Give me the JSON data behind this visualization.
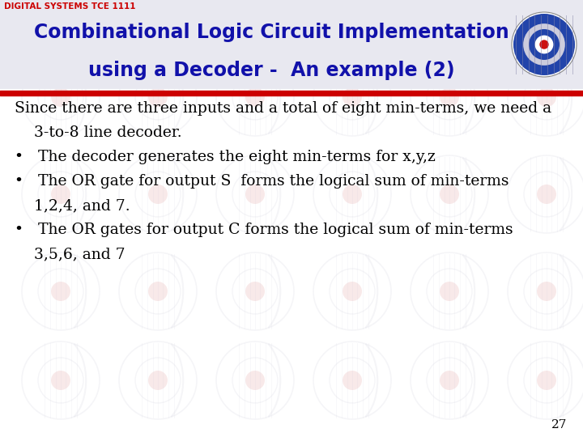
{
  "header_text": "DIGITAL SYSTEMS TCE 1111",
  "title_line1": "Combinational Logic Circuit Implementation",
  "title_line2": "using a Decoder -  An example (2)",
  "title_color": "#1111aa",
  "header_color": "#cc0000",
  "bg_color": "#ffffff",
  "title_bg_color": "#e8e8f0",
  "red_line_color": "#cc0000",
  "body_lines": [
    "Since there are three inputs and a total of eight min-terms, we need a",
    "    3-to-8 line decoder.",
    "•   The decoder generates the eight min-terms for x,y,z",
    "•   The OR gate for output S  forms the logical sum of min-terms",
    "    1,2,4, and 7.",
    "•   The OR gates for output C forms the logical sum of min-terms",
    "    3,5,6, and 7"
  ],
  "page_number": "27",
  "watermark_alpha": 0.18
}
